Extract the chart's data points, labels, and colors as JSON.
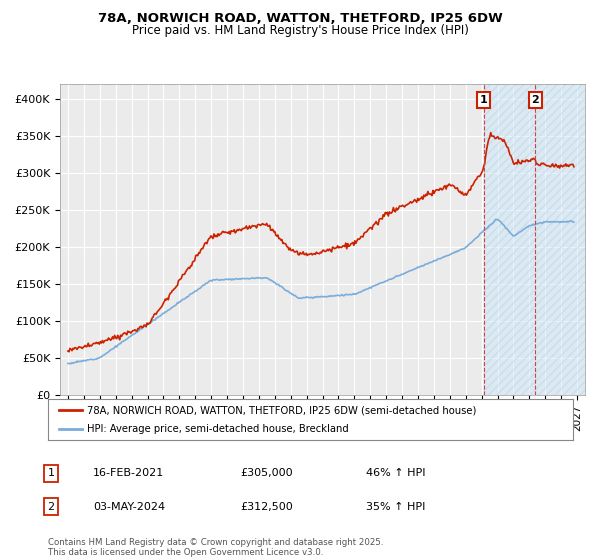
{
  "title": "78A, NORWICH ROAD, WATTON, THETFORD, IP25 6DW",
  "subtitle": "Price paid vs. HM Land Registry's House Price Index (HPI)",
  "background_color": "#ffffff",
  "plot_bg_color": "#ebebeb",
  "grid_color": "#ffffff",
  "red_color": "#cc2200",
  "blue_color": "#7aaddc",
  "shade_color": "#d0e8f8",
  "legend_entries": [
    "78A, NORWICH ROAD, WATTON, THETFORD, IP25 6DW (semi-detached house)",
    "HPI: Average price, semi-detached house, Breckland"
  ],
  "annotation1": {
    "label": "1",
    "date": "16-FEB-2021",
    "price": "£305,000",
    "hpi": "46% ↑ HPI",
    "x": 2021.12
  },
  "annotation2": {
    "label": "2",
    "date": "03-MAY-2024",
    "price": "£312,500",
    "hpi": "35% ↑ HPI",
    "x": 2024.37
  },
  "copyright": "Contains HM Land Registry data © Crown copyright and database right 2025.\nThis data is licensed under the Open Government Licence v3.0.",
  "ylim": [
    0,
    420000
  ],
  "xlim": [
    1994.5,
    2027.5
  ],
  "yticks": [
    0,
    50000,
    100000,
    150000,
    200000,
    250000,
    300000,
    350000,
    400000
  ],
  "ytick_labels": [
    "£0",
    "£50K",
    "£100K",
    "£150K",
    "£200K",
    "£250K",
    "£300K",
    "£350K",
    "£400K"
  ]
}
